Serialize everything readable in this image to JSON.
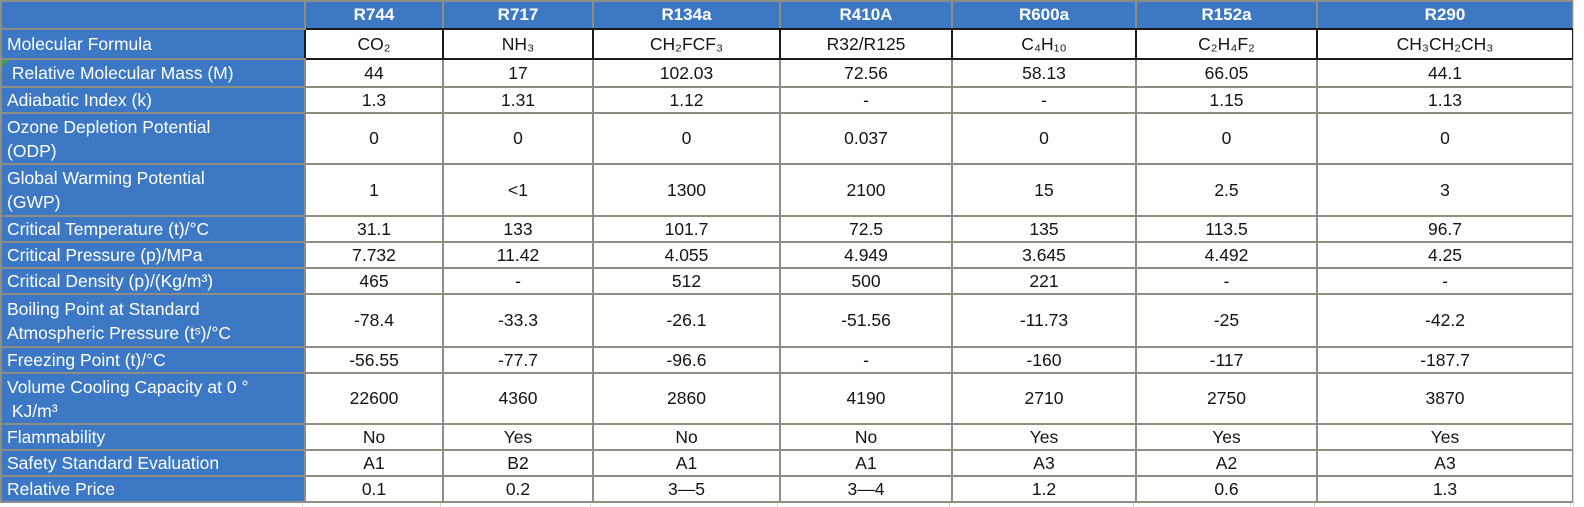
{
  "table": {
    "corner": "",
    "columns": [
      "R744",
      "R717",
      "R134a",
      "R410A",
      "R600a",
      "R152a",
      "R290"
    ],
    "rows": [
      {
        "label": "Molecular Formula",
        "values": [
          "CO₂",
          "NH₃",
          "CH₂FCF₃",
          "R32/R125",
          "C₄H₁₀",
          "C₂H₄F₂",
          "CH₃CH₂CH₃"
        ]
      },
      {
        "label": " Relative Molecular Mass (M)",
        "values": [
          "44",
          "17",
          "102.03",
          "72.56",
          "58.13",
          "66.05",
          "44.1"
        ]
      },
      {
        "label": "Adiabatic Index (k)",
        "values": [
          "1.3",
          "1.31",
          "1.12",
          "-",
          "-",
          "1.15",
          "1.13"
        ]
      },
      {
        "label": "Ozone Depletion Potential\n(ODP)",
        "values": [
          "0",
          "0",
          "0",
          "0.037",
          "0",
          "0",
          "0"
        ]
      },
      {
        "label": "Global Warming Potential\n(GWP)",
        "values": [
          "1",
          "<1",
          "1300",
          "2100",
          "15",
          "2.5",
          "3"
        ]
      },
      {
        "label": "Critical Temperature (t)/°C",
        "values": [
          "31.1",
          "133",
          "101.7",
          "72.5",
          "135",
          "113.5",
          "96.7"
        ]
      },
      {
        "label": "Critical Pressure (p)/MPa",
        "values": [
          "7.732",
          "11.42",
          "4.055",
          "4.949",
          "3.645",
          "4.492",
          "4.25"
        ]
      },
      {
        "label": "Critical Density (p)/(Kg/m³)",
        "values": [
          "465",
          "-",
          "512",
          "500",
          "221",
          "-",
          "-"
        ]
      },
      {
        "label": "Boiling Point at Standard\nAtmospheric Pressure (tˢ)/°C",
        "values": [
          "-78.4",
          "-33.3",
          "-26.1",
          "-51.56",
          "-11.73",
          "-25",
          "-42.2"
        ]
      },
      {
        "label": "Freezing Point (t)/°C",
        "values": [
          "-56.55",
          "-77.7",
          "-96.6",
          "-",
          "-160",
          "-117",
          "-187.7"
        ]
      },
      {
        "label": "Volume Cooling Capacity at 0 °\n KJ/m³",
        "values": [
          "22600",
          "4360",
          "2860",
          "4190",
          "2710",
          "2750",
          "3870"
        ]
      },
      {
        "label": "Flammability",
        "values": [
          "No",
          "Yes",
          "No",
          "No",
          "Yes",
          "Yes",
          "Yes"
        ]
      },
      {
        "label": "Safety Standard Evaluation",
        "values": [
          "A1",
          "B2",
          "A1",
          "A1",
          "A3",
          "A2",
          "A3"
        ]
      },
      {
        "label": "Relative Price",
        "values": [
          "0.1",
          "0.2",
          "3—5",
          "3—4",
          "1.2",
          "0.6",
          "1.3"
        ]
      }
    ],
    "colors": {
      "header_blue": "#3c78c3",
      "grid_gray": "#8e8e85",
      "formula_border_black": "#1b1b1b",
      "flag_green": "#3da047"
    }
  }
}
